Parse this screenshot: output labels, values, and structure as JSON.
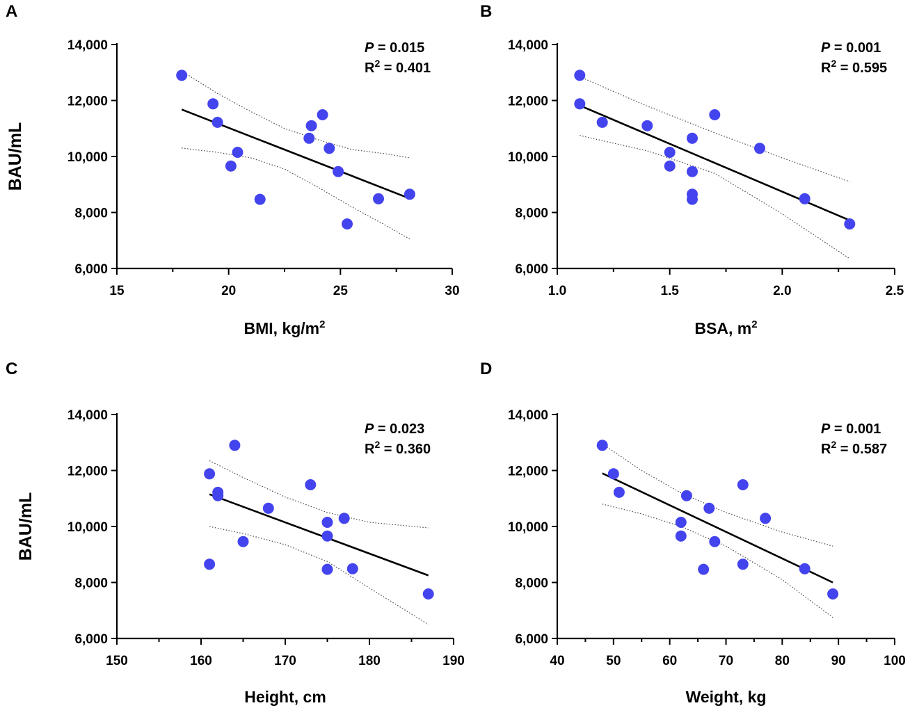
{
  "chart_data": [
    {
      "panel": "A",
      "type": "scatter",
      "xlabel": "BMI, kg/m",
      "xlabel_sup": "2",
      "ylabel": "BAU/mL",
      "xlim": [
        15,
        30
      ],
      "ylim": [
        6000,
        14000
      ],
      "xticks": [
        15,
        20,
        25,
        30
      ],
      "xtick_labels": [
        "15",
        "20",
        "25",
        "30"
      ],
      "yticks": [
        6000,
        8000,
        10000,
        12000,
        14000
      ],
      "ytick_labels": [
        "6,000",
        "8,000",
        "10,000",
        "12,000",
        "14,000"
      ],
      "p_label": "P",
      "p_value": " = 0.015",
      "r2_label": "R",
      "r2_sup": "2",
      "r2_value": " = 0.401",
      "points": [
        [
          17.9,
          12900
        ],
        [
          19.3,
          11880
        ],
        [
          19.5,
          11220
        ],
        [
          20.1,
          9660
        ],
        [
          20.4,
          10150
        ],
        [
          21.4,
          8470
        ],
        [
          23.6,
          10650
        ],
        [
          23.7,
          11100
        ],
        [
          24.2,
          11490
        ],
        [
          24.5,
          10290
        ],
        [
          24.9,
          9460
        ],
        [
          25.3,
          7590
        ],
        [
          26.7,
          8490
        ],
        [
          28.1,
          8650
        ]
      ],
      "fit": [
        [
          17.9,
          11680
        ],
        [
          28.1,
          8500
        ]
      ],
      "ci_upper": [
        [
          17.9,
          13050
        ],
        [
          19.5,
          12250
        ],
        [
          21.0,
          11600
        ],
        [
          22.5,
          11000
        ],
        [
          24.0,
          10600
        ],
        [
          25.5,
          10250
        ],
        [
          27.0,
          10100
        ],
        [
          28.1,
          9950
        ]
      ],
      "ci_lower": [
        [
          17.9,
          10300
        ],
        [
          19.5,
          10150
        ],
        [
          21.0,
          9950
        ],
        [
          22.5,
          9550
        ],
        [
          24.0,
          8900
        ],
        [
          25.5,
          8200
        ],
        [
          27.0,
          7550
        ],
        [
          28.1,
          7050
        ]
      ],
      "marker_color": "#4444ee"
    },
    {
      "panel": "B",
      "type": "scatter",
      "xlabel": "BSA, m",
      "xlabel_sup": "2",
      "ylabel": "",
      "xlim": [
        1.0,
        2.5
      ],
      "ylim": [
        6000,
        14000
      ],
      "xticks": [
        1.0,
        1.5,
        2.0,
        2.5
      ],
      "xtick_labels": [
        "1.0",
        "1.5",
        "2.0",
        "2.5"
      ],
      "yticks": [
        6000,
        8000,
        10000,
        12000,
        14000
      ],
      "ytick_labels": [
        "6,000",
        "8,000",
        "10,000",
        "12,000",
        "14,000"
      ],
      "p_label": "P",
      "p_value": " = 0.001",
      "r2_label": "R",
      "r2_sup": "2",
      "r2_value": " = 0.595",
      "points": [
        [
          1.1,
          12900
        ],
        [
          1.1,
          11880
        ],
        [
          1.2,
          11220
        ],
        [
          1.4,
          11100
        ],
        [
          1.5,
          10150
        ],
        [
          1.5,
          9660
        ],
        [
          1.6,
          10650
        ],
        [
          1.6,
          9460
        ],
        [
          1.6,
          8650
        ],
        [
          1.6,
          8470
        ],
        [
          1.7,
          11490
        ],
        [
          1.9,
          10290
        ],
        [
          2.1,
          8490
        ],
        [
          2.3,
          7590
        ]
      ],
      "fit": [
        [
          1.1,
          11820
        ],
        [
          2.3,
          7720
        ]
      ],
      "ci_upper": [
        [
          1.1,
          12850
        ],
        [
          1.4,
          11800
        ],
        [
          1.7,
          10850
        ],
        [
          2.0,
          9950
        ],
        [
          2.3,
          9100
        ]
      ],
      "ci_lower": [
        [
          1.1,
          10750
        ],
        [
          1.4,
          10200
        ],
        [
          1.7,
          9400
        ],
        [
          2.0,
          7950
        ],
        [
          2.3,
          6350
        ]
      ],
      "marker_color": "#4444ee"
    },
    {
      "panel": "C",
      "type": "scatter",
      "xlabel": "Height, cm",
      "xlabel_sup": "",
      "ylabel": "BAU/mL",
      "xlim": [
        150,
        190
      ],
      "ylim": [
        6000,
        14000
      ],
      "xticks": [
        150,
        160,
        170,
        180,
        190
      ],
      "xtick_labels": [
        "150",
        "160",
        "170",
        "180",
        "190"
      ],
      "yticks": [
        6000,
        8000,
        10000,
        12000,
        14000
      ],
      "ytick_labels": [
        "6,000",
        "8,000",
        "10,000",
        "12,000",
        "14,000"
      ],
      "p_label": "P",
      "p_value": " = 0.023",
      "r2_label": "R",
      "r2_sup": "2",
      "r2_value": " = 0.360",
      "points": [
        [
          161,
          11880
        ],
        [
          161,
          8650
        ],
        [
          162,
          11220
        ],
        [
          162,
          11100
        ],
        [
          164,
          12900
        ],
        [
          165,
          9460
        ],
        [
          168,
          10650
        ],
        [
          173,
          11490
        ],
        [
          175,
          10150
        ],
        [
          175,
          9660
        ],
        [
          175,
          8470
        ],
        [
          177,
          10290
        ],
        [
          178,
          8490
        ],
        [
          187,
          7590
        ]
      ],
      "fit": [
        [
          161,
          11150
        ],
        [
          187,
          8250
        ]
      ],
      "ci_upper": [
        [
          161,
          12350
        ],
        [
          165,
          11750
        ],
        [
          170,
          11050
        ],
        [
          175,
          10500
        ],
        [
          180,
          10150
        ],
        [
          187,
          9950
        ]
      ],
      "ci_lower": [
        [
          161,
          10000
        ],
        [
          165,
          9750
        ],
        [
          170,
          9350
        ],
        [
          175,
          8750
        ],
        [
          180,
          7800
        ],
        [
          187,
          6500
        ]
      ],
      "marker_color": "#4444ee"
    },
    {
      "panel": "D",
      "type": "scatter",
      "xlabel": "Weight, kg",
      "xlabel_sup": "",
      "ylabel": "",
      "xlim": [
        40,
        100
      ],
      "ylim": [
        6000,
        14000
      ],
      "xticks": [
        40,
        50,
        60,
        70,
        80,
        90,
        100
      ],
      "xtick_labels": [
        "40",
        "50",
        "60",
        "70",
        "80",
        "90",
        "100"
      ],
      "yticks": [
        6000,
        8000,
        10000,
        12000,
        14000
      ],
      "ytick_labels": [
        "6,000",
        "8,000",
        "10,000",
        "12,000",
        "14,000"
      ],
      "p_label": "P",
      "p_value": " = 0.001",
      "r2_label": "R",
      "r2_sup": "2",
      "r2_value": " = 0.587",
      "points": [
        [
          48,
          12900
        ],
        [
          50,
          11880
        ],
        [
          51,
          11220
        ],
        [
          62,
          10150
        ],
        [
          62,
          9660
        ],
        [
          63,
          11100
        ],
        [
          66,
          8470
        ],
        [
          67,
          10650
        ],
        [
          68,
          9460
        ],
        [
          73,
          11490
        ],
        [
          73,
          8650
        ],
        [
          77,
          10290
        ],
        [
          84,
          8490
        ],
        [
          89,
          7590
        ]
      ],
      "fit": [
        [
          48,
          11900
        ],
        [
          89,
          8000
        ]
      ],
      "ci_upper": [
        [
          48,
          12950
        ],
        [
          55,
          12000
        ],
        [
          62,
          11200
        ],
        [
          70,
          10500
        ],
        [
          80,
          9800
        ],
        [
          89,
          9300
        ]
      ],
      "ci_lower": [
        [
          48,
          10800
        ],
        [
          55,
          10450
        ],
        [
          62,
          10000
        ],
        [
          70,
          9300
        ],
        [
          80,
          8100
        ],
        [
          89,
          6750
        ]
      ],
      "marker_color": "#4444ee"
    }
  ]
}
